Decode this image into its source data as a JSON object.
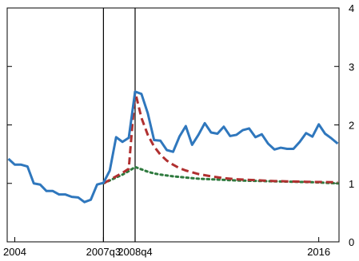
{
  "chart_data": {
    "type": "line",
    "title": "",
    "xlabel": "",
    "ylabel": "",
    "x_tick_labels": [
      "2004",
      "2007q3",
      "2008q4",
      "2016"
    ],
    "y_ticks": [
      "0",
      "1",
      "2",
      "3",
      "4"
    ],
    "ylim": [
      0,
      4
    ],
    "vertical_markers": [
      "2007q3",
      "2008q4"
    ],
    "grid": false,
    "legend": "none",
    "colors": {
      "actual": "#2f77bd",
      "dashed": "#b03030",
      "dotted": "#2e7a3e"
    },
    "series": [
      {
        "style": "solid",
        "color": "#2f77bd",
        "points": [
          [
            "2003q4",
            1.42
          ],
          [
            "2004q1",
            1.32
          ],
          [
            "2004q2",
            1.32
          ],
          [
            "2004q3",
            1.29
          ],
          [
            "2004q4",
            1.0
          ],
          [
            "2005q1",
            0.98
          ],
          [
            "2005q2",
            0.87
          ],
          [
            "2005q3",
            0.87
          ],
          [
            "2005q4",
            0.81
          ],
          [
            "2006q1",
            0.81
          ],
          [
            "2006q2",
            0.77
          ],
          [
            "2006q3",
            0.76
          ],
          [
            "2006q4",
            0.68
          ],
          [
            "2007q1",
            0.72
          ],
          [
            "2007q2",
            0.98
          ],
          [
            "2007q3",
            1.01
          ],
          [
            "2007q4",
            1.22
          ],
          [
            "2008q1",
            1.79
          ],
          [
            "2008q2",
            1.71
          ],
          [
            "2008q3",
            1.78
          ],
          [
            "2008q4",
            2.57
          ],
          [
            "2009q1",
            2.53
          ],
          [
            "2009q2",
            2.2
          ],
          [
            "2009q3",
            1.74
          ],
          [
            "2009q4",
            1.73
          ],
          [
            "2010q1",
            1.57
          ],
          [
            "2010q2",
            1.54
          ],
          [
            "2010q3",
            1.8
          ],
          [
            "2010q4",
            1.98
          ],
          [
            "2011q1",
            1.66
          ],
          [
            "2011q2",
            1.83
          ],
          [
            "2011q3",
            2.03
          ],
          [
            "2011q4",
            1.87
          ],
          [
            "2012q1",
            1.85
          ],
          [
            "2012q2",
            1.97
          ],
          [
            "2012q3",
            1.81
          ],
          [
            "2012q4",
            1.83
          ],
          [
            "2013q1",
            1.91
          ],
          [
            "2013q2",
            1.94
          ],
          [
            "2013q3",
            1.79
          ],
          [
            "2013q4",
            1.84
          ],
          [
            "2014q1",
            1.68
          ],
          [
            "2014q2",
            1.58
          ],
          [
            "2014q3",
            1.61
          ],
          [
            "2014q4",
            1.59
          ],
          [
            "2015q1",
            1.59
          ],
          [
            "2015q2",
            1.71
          ],
          [
            "2015q3",
            1.86
          ],
          [
            "2015q4",
            1.8
          ],
          [
            "2016q1",
            2.01
          ],
          [
            "2016q2",
            1.85
          ],
          [
            "2016q3",
            1.77
          ],
          [
            "2016q4",
            1.68
          ]
        ]
      },
      {
        "style": "dashed",
        "color": "#b03030",
        "points": [
          [
            "2007q3",
            1.0
          ],
          [
            "2007q4",
            1.06
          ],
          [
            "2008q1",
            1.12
          ],
          [
            "2008q2",
            1.18
          ],
          [
            "2008q3",
            1.25
          ],
          [
            "2008q4",
            2.57
          ],
          [
            "2009q1",
            2.12
          ],
          [
            "2009q2",
            1.83
          ],
          [
            "2009q3",
            1.63
          ],
          [
            "2009q4",
            1.49
          ],
          [
            "2010q1",
            1.39
          ],
          [
            "2010q2",
            1.32
          ],
          [
            "2010q3",
            1.26
          ],
          [
            "2010q4",
            1.22
          ],
          [
            "2011q2",
            1.16
          ],
          [
            "2011q4",
            1.12
          ],
          [
            "2012q2",
            1.09
          ],
          [
            "2012q4",
            1.07
          ],
          [
            "2013q2",
            1.06
          ],
          [
            "2013q4",
            1.05
          ],
          [
            "2014q2",
            1.04
          ],
          [
            "2014q4",
            1.035
          ],
          [
            "2015q2",
            1.03
          ],
          [
            "2015q4",
            1.025
          ],
          [
            "2016q4",
            1.02
          ]
        ]
      },
      {
        "style": "dotted",
        "color": "#2e7a3e",
        "points": [
          [
            "2007q3",
            1.0
          ],
          [
            "2007q4",
            1.05
          ],
          [
            "2008q1",
            1.1
          ],
          [
            "2008q2",
            1.15
          ],
          [
            "2008q3",
            1.21
          ],
          [
            "2008q4",
            1.28
          ],
          [
            "2009q1",
            1.24
          ],
          [
            "2009q2",
            1.2
          ],
          [
            "2009q3",
            1.17
          ],
          [
            "2009q4",
            1.15
          ],
          [
            "2010q2",
            1.12
          ],
          [
            "2010q4",
            1.1
          ],
          [
            "2011q2",
            1.08
          ],
          [
            "2011q4",
            1.07
          ],
          [
            "2012q2",
            1.06
          ],
          [
            "2012q4",
            1.05
          ],
          [
            "2013q4",
            1.04
          ],
          [
            "2014q4",
            1.03
          ],
          [
            "2015q4",
            1.02
          ],
          [
            "2016q4",
            1.0
          ]
        ]
      }
    ]
  }
}
